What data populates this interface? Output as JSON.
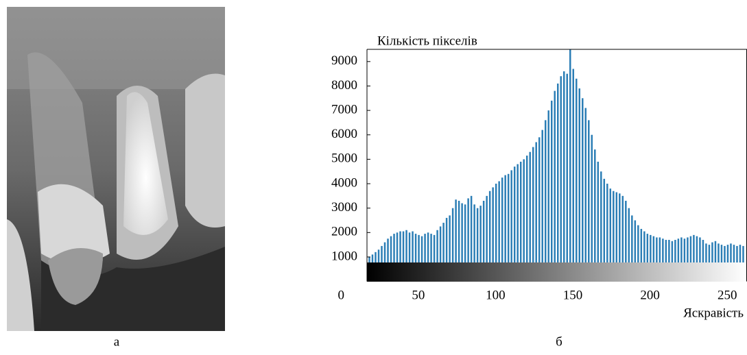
{
  "image_caption": "а",
  "chart_data": {
    "type": "histogram",
    "caption": "б",
    "y_label": "Кількість пікселів",
    "x_label": "Яскравість",
    "color": "#2a7db5",
    "bins": [
      20,
      22,
      24,
      26,
      28,
      30,
      32,
      34,
      36,
      38,
      40,
      42,
      44,
      46,
      48,
      50,
      52,
      54,
      56,
      58,
      60,
      62,
      64,
      66,
      68,
      70,
      72,
      74,
      76,
      78,
      80,
      82,
      84,
      86,
      88,
      90,
      92,
      94,
      96,
      98,
      100,
      102,
      104,
      106,
      108,
      110,
      112,
      114,
      116,
      118,
      120,
      122,
      124,
      126,
      128,
      130,
      132,
      134,
      136,
      138,
      140,
      142,
      144,
      146,
      148,
      150,
      152,
      154,
      156,
      158,
      160,
      162,
      164,
      166,
      168,
      170,
      172,
      174,
      176,
      178,
      180,
      182,
      184,
      186,
      188,
      190,
      192,
      194,
      196,
      198,
      200,
      202,
      204,
      206,
      208,
      210,
      212,
      214,
      216,
      218,
      220,
      222,
      224,
      226,
      228,
      230,
      232,
      234,
      236,
      238,
      240,
      242,
      244,
      246,
      248,
      250,
      252,
      254,
      256,
      258,
      260,
      262,
      264
    ],
    "values": [
      1000,
      1100,
      1200,
      1300,
      1450,
      1600,
      1750,
      1850,
      1950,
      2000,
      2050,
      2050,
      2100,
      2000,
      2050,
      1950,
      1900,
      1850,
      1950,
      2000,
      1950,
      1900,
      2100,
      2250,
      2400,
      2600,
      2700,
      3000,
      3350,
      3300,
      3200,
      3150,
      3400,
      3500,
      3150,
      3000,
      3100,
      3300,
      3500,
      3700,
      3850,
      4000,
      4100,
      4250,
      4350,
      4400,
      4550,
      4700,
      4800,
      4900,
      5000,
      5150,
      5300,
      5500,
      5700,
      5900,
      6200,
      6600,
      7000,
      7400,
      7800,
      8100,
      8400,
      8600,
      8500,
      9500,
      8700,
      8300,
      7900,
      7500,
      7100,
      6600,
      6000,
      5400,
      4900,
      4500,
      4200,
      4000,
      3800,
      3700,
      3650,
      3600,
      3500,
      3300,
      3000,
      2700,
      2500,
      2300,
      2150,
      2050,
      1950,
      1900,
      1850,
      1800,
      1800,
      1750,
      1700,
      1700,
      1650,
      1700,
      1750,
      1800,
      1750,
      1800,
      1850,
      1900,
      1850,
      1800,
      1700,
      1550,
      1500,
      1600,
      1650,
      1550,
      1500,
      1450,
      1500,
      1550,
      1500,
      1450,
      1500,
      1450
    ],
    "xlim": [
      19,
      265
    ],
    "xticks": [
      0,
      50,
      100,
      150,
      200,
      250
    ],
    "ylim": [
      0,
      9500
    ],
    "yticks": [
      1000,
      2000,
      3000,
      4000,
      5000,
      6000,
      7000,
      8000,
      9000
    ]
  }
}
